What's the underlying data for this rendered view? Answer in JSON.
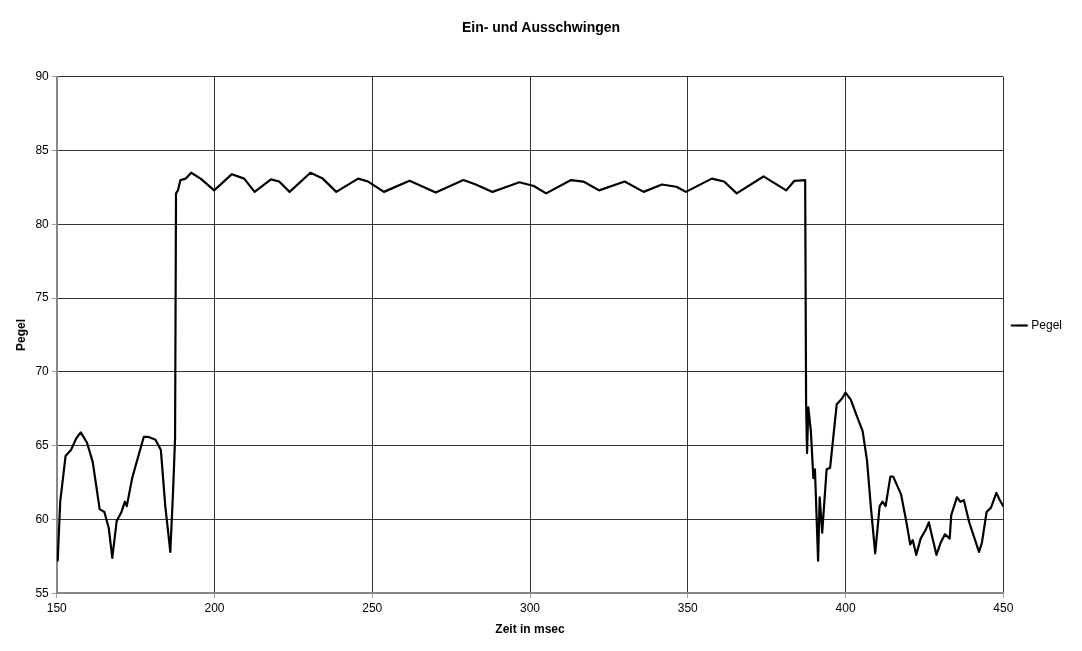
{
  "chart_data": {
    "type": "line",
    "title": "Ein- und Ausschwingen",
    "xlabel": "Zeit in msec",
    "ylabel": "Pegel",
    "xlim": [
      150,
      450
    ],
    "xticks": [
      150,
      200,
      250,
      300,
      350,
      400,
      450
    ],
    "ylim": [
      55,
      90
    ],
    "yticks": [
      55,
      60,
      65,
      70,
      75,
      80,
      85,
      90
    ],
    "grid": true,
    "legend": "right",
    "marker": "none",
    "line_style": "solid",
    "series": [
      {
        "name": "Pegel",
        "color": "#000000",
        "x": [
          150.3,
          151.1,
          152.8,
          154.5,
          156.2,
          157.6,
          159.6,
          161.4,
          162.5,
          163.6,
          165.1,
          166.5,
          167.6,
          169.0,
          170.5,
          171.6,
          172.2,
          173.9,
          175.6,
          177.6,
          178.9,
          181.3,
          183.0,
          184.4,
          186.0,
          186.9,
          187.5,
          187.8,
          188.4,
          189.2,
          190.9,
          192.6,
          195.6,
          199.9,
          205.5,
          209.4,
          212.7,
          217.9,
          220.5,
          223.8,
          230.4,
          234.3,
          238.6,
          245.5,
          248.7,
          253.7,
          261.8,
          264.5,
          270.1,
          278.9,
          282.8,
          288.1,
          296.6,
          301.2,
          305.1,
          313.0,
          316.9,
          321.9,
          330.0,
          336.0,
          341.8,
          346.4,
          349.4,
          357.6,
          361.5,
          365.5,
          374.0,
          381.2,
          383.8,
          387.2,
          387.5,
          387.8,
          388.2,
          389.0,
          389.8,
          390.3,
          391.3,
          391.8,
          392.6,
          394.0,
          395.1,
          397.2,
          398.9,
          400.0,
          401.7,
          403.4,
          405.4,
          406.8,
          408.0,
          409.4,
          410.8,
          411.7,
          412.7,
          414.2,
          415.1,
          417.6,
          419.3,
          420.5,
          421.3,
          422.4,
          423.8,
          425.4,
          426.4,
          427.7,
          428.8,
          430.1,
          431.5,
          433.0,
          433.5,
          435.3,
          436.4,
          437.5,
          439.2,
          440.9,
          442.3,
          443.2,
          444.7,
          446.1,
          447.8,
          448.9,
          450.0
        ],
        "values": [
          57.2,
          61.2,
          64.3,
          64.7,
          65.5,
          65.9,
          65.2,
          63.9,
          62.3,
          60.7,
          60.5,
          59.4,
          57.4,
          59.9,
          60.5,
          61.2,
          60.9,
          62.8,
          64.1,
          65.6,
          65.6,
          65.4,
          64.7,
          60.9,
          57.8,
          62.1,
          65.5,
          82.1,
          82.3,
          83.0,
          83.1,
          83.5,
          83.1,
          82.3,
          83.4,
          83.1,
          82.2,
          83.05,
          82.9,
          82.2,
          83.5,
          83.1,
          82.2,
          83.1,
          82.9,
          82.2,
          82.95,
          82.7,
          82.15,
          83.0,
          82.7,
          82.2,
          82.85,
          82.6,
          82.1,
          83.0,
          82.9,
          82.3,
          82.9,
          82.2,
          82.7,
          82.55,
          82.2,
          83.1,
          82.9,
          82.1,
          83.25,
          82.3,
          82.95,
          83.0,
          67.8,
          64.5,
          67.6,
          66.0,
          62.8,
          63.4,
          57.2,
          61.5,
          59.1,
          63.4,
          63.5,
          67.8,
          68.2,
          68.6,
          68.1,
          67.1,
          66.0,
          64.0,
          60.9,
          57.7,
          60.9,
          61.2,
          60.9,
          62.9,
          62.9,
          61.7,
          59.8,
          58.3,
          58.6,
          57.6,
          58.7,
          59.3,
          59.8,
          58.6,
          57.6,
          58.4,
          59.0,
          58.7,
          60.3,
          61.5,
          61.2,
          61.3,
          59.8,
          58.7,
          57.8,
          58.4,
          60.5,
          60.8,
          61.8,
          61.3,
          60.9
        ]
      }
    ]
  }
}
